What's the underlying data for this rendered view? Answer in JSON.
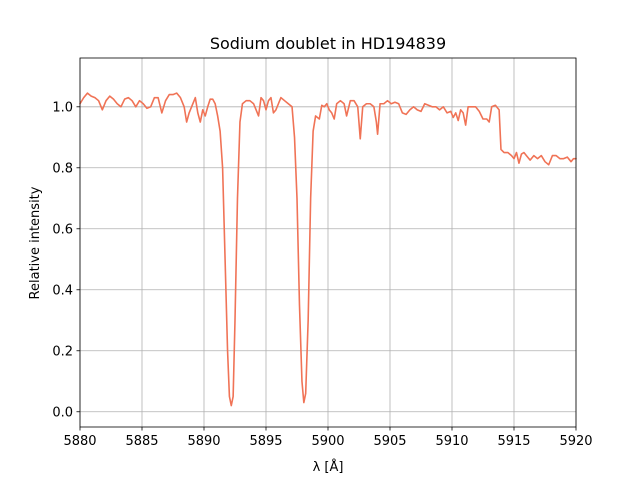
{
  "chart_data": {
    "type": "line",
    "title": "Sodium doublet in HD194839",
    "xlabel": "λ [Å]",
    "ylabel": "Relative intensity",
    "xlim": [
      5880,
      5920
    ],
    "ylim": [
      -0.05,
      1.16
    ],
    "x_ticks": [
      5880,
      5885,
      5890,
      5895,
      5900,
      5905,
      5910,
      5915,
      5920
    ],
    "y_ticks": [
      0.0,
      0.2,
      0.4,
      0.6,
      0.8,
      1.0
    ],
    "grid": true,
    "series": [
      {
        "color": "#f07356",
        "points": [
          [
            5880.0,
            1.01
          ],
          [
            5880.3,
            1.03
          ],
          [
            5880.6,
            1.045
          ],
          [
            5880.9,
            1.035
          ],
          [
            5881.2,
            1.03
          ],
          [
            5881.5,
            1.02
          ],
          [
            5881.8,
            0.99
          ],
          [
            5882.1,
            1.02
          ],
          [
            5882.4,
            1.035
          ],
          [
            5882.7,
            1.025
          ],
          [
            5883.0,
            1.01
          ],
          [
            5883.3,
            1.0
          ],
          [
            5883.6,
            1.025
          ],
          [
            5883.9,
            1.03
          ],
          [
            5884.2,
            1.02
          ],
          [
            5884.5,
            1.0
          ],
          [
            5884.8,
            1.02
          ],
          [
            5885.1,
            1.01
          ],
          [
            5885.4,
            0.995
          ],
          [
            5885.7,
            1.0
          ],
          [
            5886.0,
            1.03
          ],
          [
            5886.3,
            1.03
          ],
          [
            5886.6,
            0.98
          ],
          [
            5886.9,
            1.02
          ],
          [
            5887.2,
            1.04
          ],
          [
            5887.5,
            1.04
          ],
          [
            5887.8,
            1.045
          ],
          [
            5888.1,
            1.03
          ],
          [
            5888.4,
            1.0
          ],
          [
            5888.6,
            0.95
          ],
          [
            5888.8,
            0.98
          ],
          [
            5889.0,
            1.0
          ],
          [
            5889.3,
            1.03
          ],
          [
            5889.5,
            0.98
          ],
          [
            5889.7,
            0.95
          ],
          [
            5889.9,
            0.99
          ],
          [
            5890.1,
            0.97
          ],
          [
            5890.3,
            1.0
          ],
          [
            5890.5,
            1.025
          ],
          [
            5890.7,
            1.025
          ],
          [
            5890.9,
            1.01
          ],
          [
            5891.1,
            0.97
          ],
          [
            5891.3,
            0.92
          ],
          [
            5891.5,
            0.8
          ],
          [
            5891.7,
            0.5
          ],
          [
            5891.9,
            0.2
          ],
          [
            5892.05,
            0.05
          ],
          [
            5892.2,
            0.02
          ],
          [
            5892.35,
            0.05
          ],
          [
            5892.5,
            0.3
          ],
          [
            5892.7,
            0.7
          ],
          [
            5892.9,
            0.95
          ],
          [
            5893.1,
            1.01
          ],
          [
            5893.4,
            1.02
          ],
          [
            5893.7,
            1.02
          ],
          [
            5894.0,
            1.01
          ],
          [
            5894.2,
            0.99
          ],
          [
            5894.4,
            0.97
          ],
          [
            5894.6,
            1.03
          ],
          [
            5894.8,
            1.02
          ],
          [
            5895.0,
            0.99
          ],
          [
            5895.2,
            1.02
          ],
          [
            5895.4,
            1.03
          ],
          [
            5895.6,
            0.98
          ],
          [
            5895.8,
            0.99
          ],
          [
            5896.0,
            1.01
          ],
          [
            5896.2,
            1.03
          ],
          [
            5896.5,
            1.02
          ],
          [
            5896.8,
            1.01
          ],
          [
            5897.1,
            1.0
          ],
          [
            5897.3,
            0.9
          ],
          [
            5897.5,
            0.7
          ],
          [
            5897.7,
            0.35
          ],
          [
            5897.9,
            0.1
          ],
          [
            5898.05,
            0.03
          ],
          [
            5898.2,
            0.06
          ],
          [
            5898.4,
            0.3
          ],
          [
            5898.6,
            0.7
          ],
          [
            5898.8,
            0.92
          ],
          [
            5899.0,
            0.97
          ],
          [
            5899.3,
            0.96
          ],
          [
            5899.5,
            1.005
          ],
          [
            5899.7,
            1.0
          ],
          [
            5899.9,
            1.01
          ],
          [
            5900.1,
            0.99
          ],
          [
            5900.3,
            0.98
          ],
          [
            5900.5,
            0.96
          ],
          [
            5900.7,
            1.01
          ],
          [
            5901.0,
            1.02
          ],
          [
            5901.3,
            1.01
          ],
          [
            5901.5,
            0.97
          ],
          [
            5901.8,
            1.02
          ],
          [
            5902.1,
            1.02
          ],
          [
            5902.4,
            1.0
          ],
          [
            5902.6,
            0.895
          ],
          [
            5902.8,
            1.0
          ],
          [
            5903.1,
            1.01
          ],
          [
            5903.4,
            1.01
          ],
          [
            5903.7,
            1.0
          ],
          [
            5903.9,
            0.95
          ],
          [
            5904.0,
            0.91
          ],
          [
            5904.2,
            1.01
          ],
          [
            5904.5,
            1.01
          ],
          [
            5904.8,
            1.02
          ],
          [
            5905.1,
            1.01
          ],
          [
            5905.4,
            1.015
          ],
          [
            5905.7,
            1.01
          ],
          [
            5906.0,
            0.98
          ],
          [
            5906.3,
            0.975
          ],
          [
            5906.6,
            0.99
          ],
          [
            5906.9,
            1.0
          ],
          [
            5907.2,
            0.99
          ],
          [
            5907.5,
            0.985
          ],
          [
            5907.8,
            1.01
          ],
          [
            5908.1,
            1.005
          ],
          [
            5908.4,
            1.0
          ],
          [
            5908.7,
            1.0
          ],
          [
            5909.0,
            0.99
          ],
          [
            5909.3,
            1.0
          ],
          [
            5909.6,
            0.98
          ],
          [
            5909.9,
            0.985
          ],
          [
            5910.1,
            0.965
          ],
          [
            5910.3,
            0.98
          ],
          [
            5910.5,
            0.955
          ],
          [
            5910.7,
            0.99
          ],
          [
            5910.9,
            0.98
          ],
          [
            5911.1,
            0.94
          ],
          [
            5911.3,
            1.0
          ],
          [
            5911.6,
            1.0
          ],
          [
            5911.9,
            1.0
          ],
          [
            5912.2,
            0.985
          ],
          [
            5912.5,
            0.96
          ],
          [
            5912.8,
            0.96
          ],
          [
            5913.0,
            0.95
          ],
          [
            5913.2,
            1.0
          ],
          [
            5913.5,
            1.005
          ],
          [
            5913.8,
            0.99
          ],
          [
            5913.95,
            0.86
          ],
          [
            5914.2,
            0.85
          ],
          [
            5914.5,
            0.85
          ],
          [
            5914.8,
            0.84
          ],
          [
            5915.0,
            0.83
          ],
          [
            5915.2,
            0.85
          ],
          [
            5915.4,
            0.815
          ],
          [
            5915.6,
            0.845
          ],
          [
            5915.8,
            0.85
          ],
          [
            5916.0,
            0.84
          ],
          [
            5916.3,
            0.825
          ],
          [
            5916.6,
            0.84
          ],
          [
            5916.9,
            0.83
          ],
          [
            5917.2,
            0.84
          ],
          [
            5917.5,
            0.82
          ],
          [
            5917.8,
            0.81
          ],
          [
            5918.1,
            0.84
          ],
          [
            5918.4,
            0.84
          ],
          [
            5918.7,
            0.83
          ],
          [
            5919.0,
            0.83
          ],
          [
            5919.3,
            0.835
          ],
          [
            5919.6,
            0.82
          ],
          [
            5919.8,
            0.83
          ],
          [
            5920.0,
            0.83
          ]
        ]
      }
    ]
  }
}
